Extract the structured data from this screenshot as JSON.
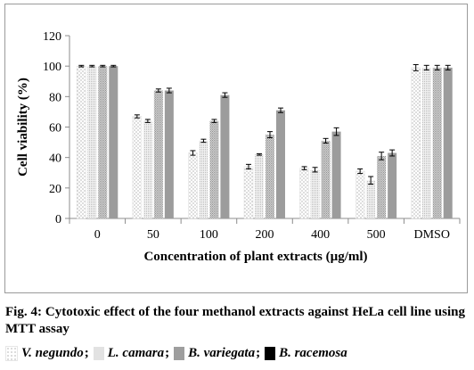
{
  "chart_data": {
    "type": "bar",
    "ylabel": "Cell viability (%)",
    "xlabel": "Concentration of plant extracts (µg/ml)",
    "ylim": [
      0,
      120
    ],
    "yticks": [
      0,
      20,
      40,
      60,
      80,
      100,
      120
    ],
    "grid": false,
    "categories": [
      "0",
      "50",
      "100",
      "200",
      "400",
      "500",
      "DMSO"
    ],
    "series": [
      {
        "name": "V. negundo",
        "pattern": "dots-white",
        "values": [
          100,
          67,
          43,
          34,
          33,
          31,
          99
        ],
        "errors": [
          0.5,
          1,
          1.5,
          1.5,
          1,
          1.5,
          2
        ]
      },
      {
        "name": "L. camara",
        "pattern": "fine-dots-light",
        "values": [
          100,
          64,
          51,
          42,
          32,
          25,
          99
        ],
        "errors": [
          0.5,
          1,
          1,
          0.5,
          1.5,
          2.5,
          1.5
        ]
      },
      {
        "name": "B. variegata",
        "pattern": "dense-grey",
        "values": [
          100,
          84,
          64,
          55,
          51,
          41,
          99
        ],
        "errors": [
          0.5,
          1,
          1,
          2,
          1.5,
          2.5,
          1.5
        ]
      },
      {
        "name": "B. racemosa",
        "pattern": "solid-grey",
        "values": [
          100,
          84,
          81,
          71,
          57,
          43,
          99
        ],
        "errors": [
          0.5,
          1.5,
          1.5,
          1.5,
          2.5,
          2,
          1.5
        ]
      }
    ]
  },
  "caption": {
    "label": "Fig. 4",
    "text": ": Cytotoxic effect of the four methanol extracts against HeLa cell line using MTT assay"
  },
  "legend": {
    "items": [
      "V. negundo",
      "L. camara",
      "B. variegata",
      "B. racemosa"
    ],
    "separator": ";"
  },
  "colors": {
    "solid_bar": "#9c9c9c",
    "dense_bar": "#d4d4d4",
    "light_bar": "#f1f1f1",
    "axis": "#8c8c8c"
  }
}
